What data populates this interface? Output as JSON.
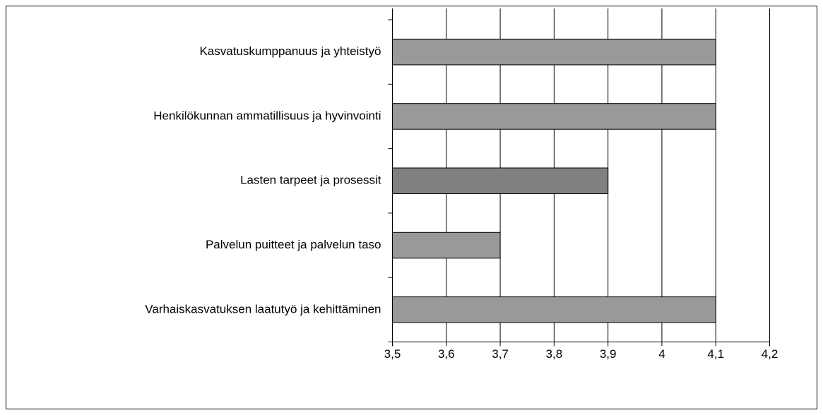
{
  "chart_data": {
    "type": "barh",
    "categories": [
      "Kasvatuskumppanuus ja yhteistyö",
      "Henkilökunnan ammatillisuus ja hyvinvointi",
      "Lasten tarpeet ja prosessit",
      "Palvelun puitteet ja palvelun taso",
      "Varhaiskasvatuksen laatutyö ja kehittäminen"
    ],
    "values": [
      4.1,
      4.1,
      3.9,
      3.7,
      4.1
    ],
    "colors": [
      "#999999",
      "#999999",
      "#808080",
      "#999999",
      "#999999"
    ],
    "xlim": [
      3.5,
      4.2
    ],
    "xticks": [
      {
        "value": 3.5,
        "label": "3,5"
      },
      {
        "value": 3.6,
        "label": "3,6"
      },
      {
        "value": 3.7,
        "label": "3,7"
      },
      {
        "value": 3.8,
        "label": "3,8"
      },
      {
        "value": 3.9,
        "label": "3,9"
      },
      4,
      {
        "value": 4.1,
        "label": "4,1"
      },
      {
        "value": 4.2,
        "label": "4,2"
      }
    ],
    "grid": true
  }
}
